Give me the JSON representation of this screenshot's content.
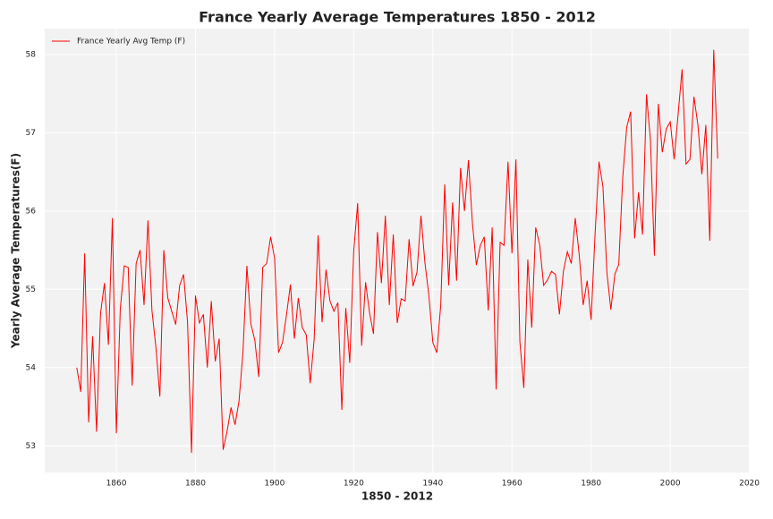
{
  "chart_data": {
    "type": "line",
    "title": "France Yearly Average Temperatures 1850 - 2012",
    "x_label": "1850 - 2012",
    "y_label": "Yearly Average Temperatures(F)",
    "x": [
      1850,
      1851,
      1852,
      1853,
      1854,
      1855,
      1856,
      1857,
      1858,
      1859,
      1860,
      1861,
      1862,
      1863,
      1864,
      1865,
      1866,
      1867,
      1868,
      1869,
      1870,
      1871,
      1872,
      1873,
      1874,
      1875,
      1876,
      1877,
      1878,
      1879,
      1880,
      1881,
      1882,
      1883,
      1884,
      1885,
      1886,
      1887,
      1888,
      1889,
      1890,
      1891,
      1892,
      1893,
      1894,
      1895,
      1896,
      1897,
      1898,
      1899,
      1900,
      1901,
      1902,
      1903,
      1904,
      1905,
      1906,
      1907,
      1908,
      1909,
      1910,
      1911,
      1912,
      1913,
      1914,
      1915,
      1916,
      1917,
      1918,
      1919,
      1920,
      1921,
      1922,
      1923,
      1924,
      1925,
      1926,
      1927,
      1928,
      1929,
      1930,
      1931,
      1932,
      1933,
      1934,
      1935,
      1936,
      1937,
      1938,
      1939,
      1940,
      1941,
      1942,
      1943,
      1944,
      1945,
      1946,
      1947,
      1948,
      1949,
      1950,
      1951,
      1952,
      1953,
      1954,
      1955,
      1956,
      1957,
      1958,
      1959,
      1960,
      1961,
      1962,
      1963,
      1964,
      1965,
      1966,
      1967,
      1968,
      1969,
      1970,
      1971,
      1972,
      1973,
      1974,
      1975,
      1976,
      1977,
      1978,
      1979,
      1980,
      1981,
      1982,
      1983,
      1984,
      1985,
      1986,
      1987,
      1988,
      1989,
      1990,
      1991,
      1992,
      1993,
      1994,
      1995,
      1996,
      1997,
      1998,
      1999,
      2000,
      2001,
      2002,
      2003,
      2004,
      2005,
      2006,
      2007,
      2008,
      2009,
      2010,
      2011,
      2012
    ],
    "series": [
      {
        "name": "France Yearly Avg Temp (F)",
        "color": "#ff0000",
        "values": [
          54.0,
          53.69,
          55.46,
          53.3,
          54.4,
          53.18,
          54.69,
          55.08,
          54.29,
          55.91,
          53.16,
          54.75,
          55.3,
          55.28,
          53.77,
          55.33,
          55.5,
          54.8,
          55.88,
          54.73,
          54.26,
          53.63,
          55.5,
          54.89,
          54.72,
          54.55,
          55.05,
          55.19,
          54.58,
          52.91,
          54.92,
          54.57,
          54.68,
          54.0,
          54.85,
          54.08,
          54.37,
          52.95,
          53.19,
          53.49,
          53.27,
          53.57,
          54.19,
          55.3,
          54.56,
          54.35,
          53.88,
          55.28,
          55.33,
          55.67,
          55.4,
          54.19,
          54.32,
          54.67,
          55.06,
          54.37,
          54.89,
          54.51,
          54.42,
          53.8,
          54.36,
          55.69,
          54.58,
          55.25,
          54.85,
          54.72,
          54.83,
          53.46,
          54.76,
          54.06,
          55.49,
          56.1,
          54.28,
          55.09,
          54.7,
          54.43,
          55.73,
          55.08,
          55.94,
          54.8,
          55.7,
          54.57,
          54.88,
          54.85,
          55.64,
          55.04,
          55.22,
          55.94,
          55.34,
          54.92,
          54.32,
          54.19,
          54.8,
          56.34,
          55.05,
          56.11,
          55.11,
          56.55,
          56.0,
          56.65,
          55.85,
          55.31,
          55.56,
          55.67,
          54.73,
          55.79,
          53.72,
          55.6,
          55.56,
          56.63,
          55.46,
          56.66,
          54.33,
          53.74,
          55.38,
          54.51,
          55.79,
          55.57,
          55.05,
          55.12,
          55.23,
          55.19,
          54.68,
          55.23,
          55.48,
          55.33,
          55.91,
          55.44,
          54.8,
          55.11,
          54.61,
          55.7,
          56.63,
          56.31,
          55.21,
          54.74,
          55.19,
          55.32,
          56.43,
          57.07,
          57.27,
          55.65,
          56.24,
          55.7,
          57.49,
          56.91,
          55.43,
          57.37,
          56.75,
          57.05,
          57.14,
          56.66,
          57.24,
          57.81,
          56.6,
          56.66,
          57.46,
          57.1,
          56.47,
          57.1,
          55.62,
          58.06,
          56.67
        ]
      }
    ],
    "xlim": [
      1841.9,
      2020.1
    ],
    "xticks": [
      1860,
      1880,
      1900,
      1920,
      1940,
      1960,
      1980,
      2000,
      2020
    ],
    "ylim": [
      52.66,
      58.33
    ],
    "yticks": [
      53,
      54,
      55,
      56,
      57,
      58
    ],
    "grid": true,
    "legend": "upper left"
  }
}
